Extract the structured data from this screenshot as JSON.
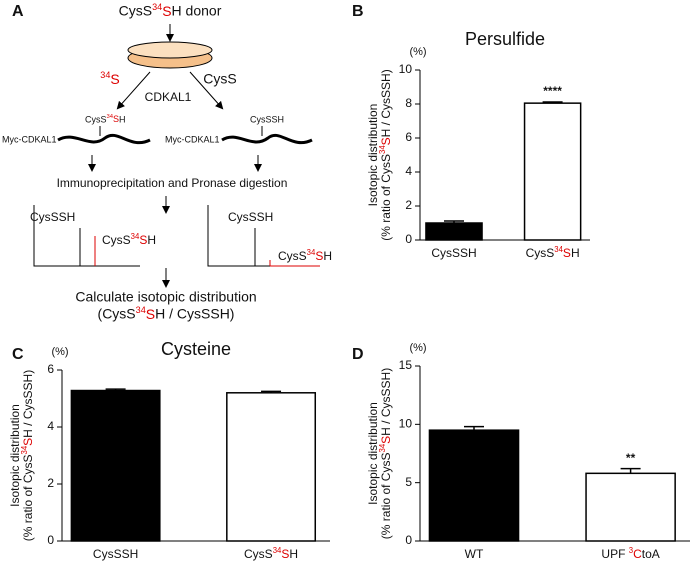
{
  "diagram": {
    "panel": "A",
    "donor": "CysS34SH donor",
    "left_branch": "34S",
    "right_branch": "CysS",
    "enzyme": "CDKAL1",
    "left_mod": "CysS34SH",
    "right_mod": "CysSSH",
    "left_protein": "Myc-CDKAL1",
    "right_protein": "Myc-CDKAL1",
    "step": "Immunoprecipitation and Pronase digestion",
    "left_peak1": "CysSSH",
    "left_peak2": "CysS34SH",
    "right_peak1": "CysSSH",
    "right_peak2": "CysS34SH",
    "result_line1": "Calculate isotopic distribution",
    "result_line2": "(CysS34SH / CysSSH)"
  },
  "chart_data": [
    {
      "type": "bar",
      "panel": "B",
      "title": "Persulfide",
      "unit": "(%)",
      "ylabel": [
        "Isotopic distribution",
        "(% ratio of CysS34SH / CysSSH)"
      ],
      "categories": [
        "CysSSH",
        "CysS34SH"
      ],
      "values": [
        1.0,
        8.05
      ],
      "errors": [
        0.12,
        0.07
      ],
      "colors": [
        "#000000",
        "#ffffff"
      ],
      "significance": [
        null,
        "****"
      ],
      "ylim": [
        0,
        10
      ],
      "yticks": [
        0,
        2,
        4,
        6,
        8,
        10
      ]
    },
    {
      "type": "bar",
      "panel": "C",
      "title": "Cysteine",
      "unit": "(%)",
      "ylabel": [
        "Isotopic distribution",
        "(% ratio of CysS34SH / CysSSH)"
      ],
      "categories": [
        "CysSSH",
        "CysS34SH"
      ],
      "values": [
        5.28,
        5.2
      ],
      "errors": [
        0.05,
        0.05
      ],
      "colors": [
        "#000000",
        "#ffffff"
      ],
      "significance": [
        null,
        null
      ],
      "ylim": [
        0,
        6
      ],
      "yticks": [
        0,
        2,
        4,
        6
      ]
    },
    {
      "type": "bar",
      "panel": "D",
      "unit": "(%)",
      "ylabel": [
        "Isotopic distribution",
        "(% ratio of CysS34SH / CysSSH)"
      ],
      "categories": [
        "WT",
        "UPF 3CtoA"
      ],
      "values": [
        9.5,
        5.8
      ],
      "errors": [
        0.3,
        0.4
      ],
      "colors": [
        "#000000",
        "#ffffff"
      ],
      "significance": [
        null,
        "**"
      ],
      "ylim": [
        0,
        15
      ],
      "yticks": [
        0,
        5,
        10,
        15
      ]
    }
  ]
}
